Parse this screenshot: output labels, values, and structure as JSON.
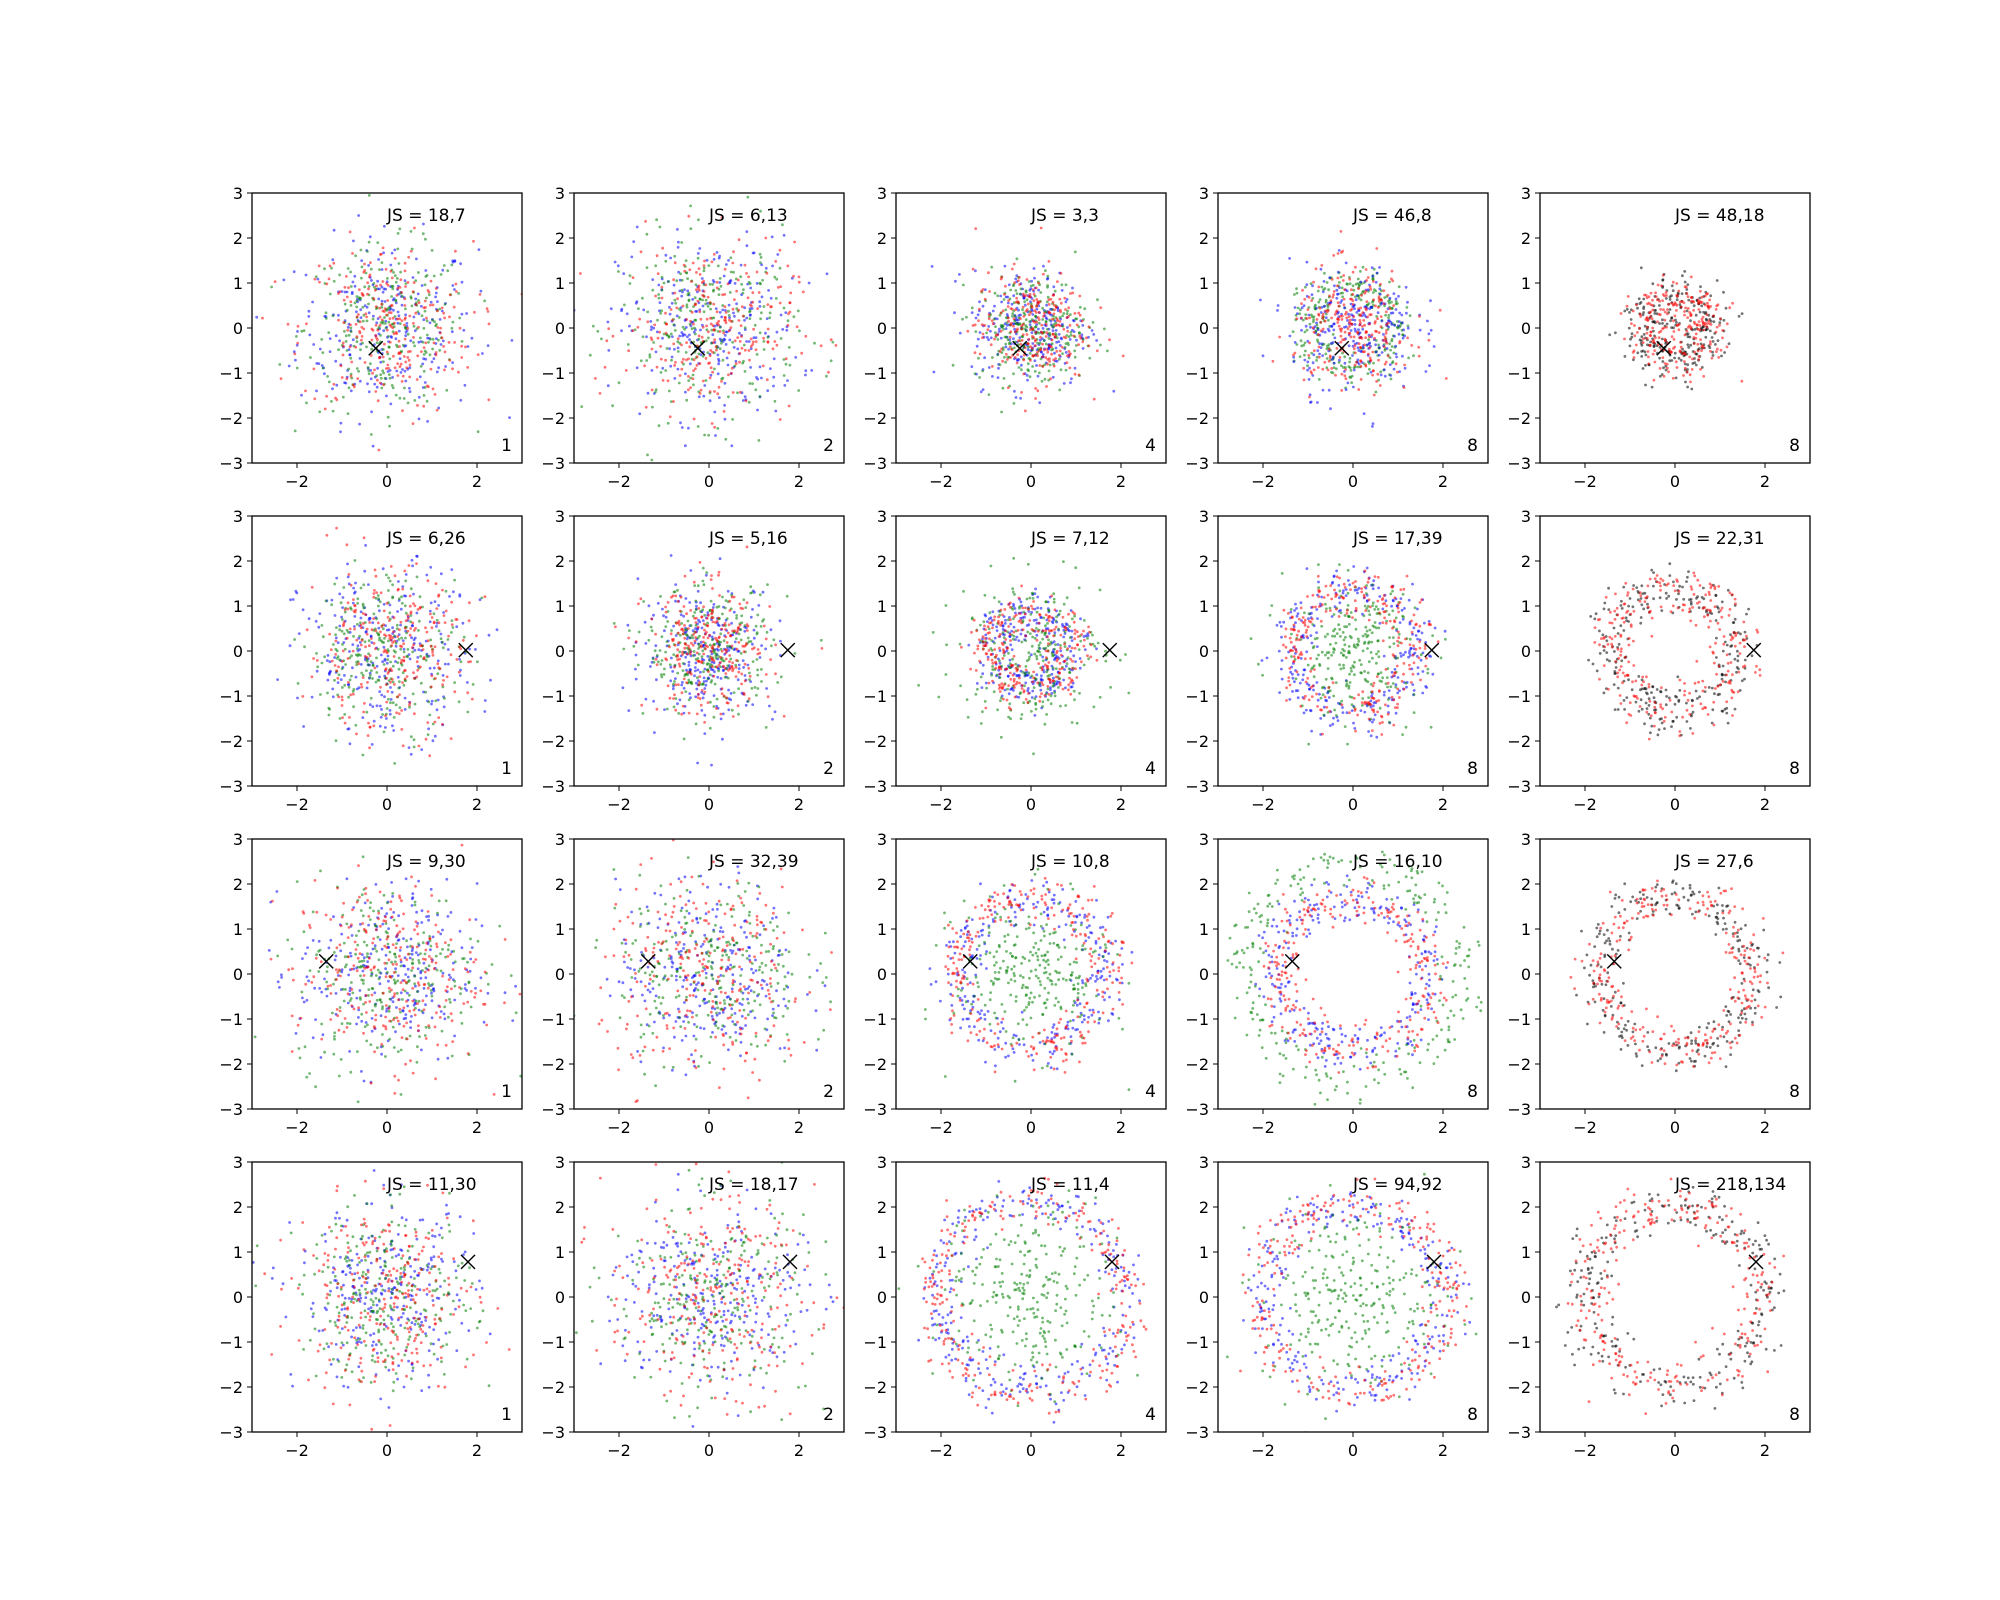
{
  "colors": {
    "blue": "#0000ff",
    "green": "#008000",
    "red": "#ff0000",
    "black": "#000000"
  },
  "chart_data": {
    "type": "scatter",
    "layout": "4x5 grid of scatter subplots",
    "shared_axes": {
      "xlim": [
        -3,
        3
      ],
      "ylim": [
        -3,
        3
      ],
      "xticks": [
        -2,
        0,
        2
      ],
      "yticks": [
        -3,
        -2,
        -1,
        0,
        1,
        2,
        3
      ],
      "grid": false
    },
    "marker_rows": [
      {
        "x": -0.25,
        "y": -0.45
      },
      {
        "x": 1.75,
        "y": 0.02
      },
      {
        "x": -1.35,
        "y": 0.28
      },
      {
        "x": 1.8,
        "y": 0.78
      }
    ],
    "panels": [
      {
        "row": 0,
        "col": 0,
        "js_label": "JS = 18,7",
        "corner_label": "1",
        "shape": "gaussian",
        "series": [
          {
            "color": "blue",
            "r": 1.0
          },
          {
            "color": "green",
            "r": 0.9
          },
          {
            "color": "red",
            "r": 0.95
          }
        ]
      },
      {
        "row": 0,
        "col": 1,
        "js_label": "JS = 6,13",
        "corner_label": "2",
        "shape": "gaussian",
        "series": [
          {
            "color": "blue",
            "r": 1.0
          },
          {
            "color": "green",
            "r": 1.0
          },
          {
            "color": "red",
            "r": 0.95
          }
        ]
      },
      {
        "row": 0,
        "col": 2,
        "js_label": "JS = 3,3",
        "corner_label": "4",
        "shape": "gaussian",
        "series": [
          {
            "color": "blue",
            "r": 0.65
          },
          {
            "color": "green",
            "r": 0.62
          },
          {
            "color": "red",
            "r": 0.62
          }
        ]
      },
      {
        "row": 0,
        "col": 3,
        "js_label": "JS = 46,8",
        "corner_label": "8",
        "shape": "mixed",
        "series": [
          {
            "color": "green",
            "r": 0.95
          },
          {
            "color": "blue",
            "r": 0.7
          },
          {
            "color": "red",
            "r": 0.65
          }
        ]
      },
      {
        "row": 0,
        "col": 4,
        "js_label": "JS = 48,18",
        "corner_label": "8",
        "shape": "arc",
        "series": [
          {
            "color": "black",
            "r": 0.75
          },
          {
            "color": "red",
            "r": 0.7
          }
        ]
      },
      {
        "row": 1,
        "col": 0,
        "js_label": "JS = 6,26",
        "corner_label": "1",
        "shape": "gaussian",
        "series": [
          {
            "color": "blue",
            "r": 0.95
          },
          {
            "color": "green",
            "r": 0.85
          },
          {
            "color": "red",
            "r": 0.9
          }
        ]
      },
      {
        "row": 1,
        "col": 1,
        "js_label": "JS = 5,16",
        "corner_label": "2",
        "shape": "gaussian",
        "series": [
          {
            "color": "blue",
            "r": 0.75
          },
          {
            "color": "green",
            "r": 0.7
          },
          {
            "color": "red",
            "r": 0.7
          }
        ]
      },
      {
        "row": 1,
        "col": 2,
        "js_label": "JS = 7,12",
        "corner_label": "4",
        "shape": "ring",
        "series": [
          {
            "color": "blue",
            "r": 0.85
          },
          {
            "color": "green",
            "r": 0.8
          },
          {
            "color": "red",
            "r": 0.9
          }
        ]
      },
      {
        "row": 1,
        "col": 3,
        "js_label": "JS = 17,39",
        "corner_label": "8",
        "shape": "ring",
        "series": [
          {
            "color": "blue",
            "r": 1.4
          },
          {
            "color": "green",
            "r": 0.75
          },
          {
            "color": "red",
            "r": 1.35
          }
        ]
      },
      {
        "row": 1,
        "col": 4,
        "js_label": "JS = 22,31",
        "corner_label": "8",
        "shape": "arc",
        "series": [
          {
            "color": "black",
            "r": 1.4
          },
          {
            "color": "red",
            "r": 1.35
          }
        ]
      },
      {
        "row": 2,
        "col": 0,
        "js_label": "JS = 9,30",
        "corner_label": "1",
        "shape": "gaussian",
        "series": [
          {
            "color": "blue",
            "r": 1.0
          },
          {
            "color": "green",
            "r": 1.05
          },
          {
            "color": "red",
            "r": 1.05
          }
        ]
      },
      {
        "row": 2,
        "col": 1,
        "js_label": "JS = 32,39",
        "corner_label": "2",
        "shape": "gaussian",
        "series": [
          {
            "color": "blue",
            "r": 1.0
          },
          {
            "color": "green",
            "r": 1.05
          },
          {
            "color": "red",
            "r": 1.2
          }
        ]
      },
      {
        "row": 2,
        "col": 2,
        "js_label": "JS = 10,8",
        "corner_label": "4",
        "shape": "ring",
        "series": [
          {
            "color": "blue",
            "r": 1.6
          },
          {
            "color": "green",
            "r": 0.85
          },
          {
            "color": "red",
            "r": 1.7
          }
        ]
      },
      {
        "row": 2,
        "col": 3,
        "js_label": "JS = 16,10",
        "corner_label": "8",
        "shape": "ring",
        "series": [
          {
            "color": "blue",
            "r": 1.7
          },
          {
            "color": "green",
            "r": 2.4
          },
          {
            "color": "red",
            "r": 1.65
          }
        ]
      },
      {
        "row": 2,
        "col": 4,
        "js_label": "JS = 27,6",
        "corner_label": "8",
        "shape": "ring",
        "series": [
          {
            "color": "black",
            "r": 1.75
          },
          {
            "color": "red",
            "r": 1.7
          }
        ]
      },
      {
        "row": 3,
        "col": 0,
        "js_label": "JS = 11,30",
        "corner_label": "1",
        "shape": "gaussian",
        "series": [
          {
            "color": "blue",
            "r": 1.0
          },
          {
            "color": "green",
            "r": 0.95
          },
          {
            "color": "red",
            "r": 1.0
          }
        ]
      },
      {
        "row": 3,
        "col": 1,
        "js_label": "JS = 18,17",
        "corner_label": "2",
        "shape": "gaussian",
        "series": [
          {
            "color": "blue",
            "r": 1.05
          },
          {
            "color": "green",
            "r": 1.1
          },
          {
            "color": "red",
            "r": 1.15
          }
        ]
      },
      {
        "row": 3,
        "col": 2,
        "js_label": "JS = 11,4",
        "corner_label": "4",
        "shape": "ring",
        "series": [
          {
            "color": "blue",
            "r": 2.1
          },
          {
            "color": "green",
            "r": 1.0
          },
          {
            "color": "red",
            "r": 2.15
          }
        ]
      },
      {
        "row": 3,
        "col": 3,
        "js_label": "JS = 94,92",
        "corner_label": "8",
        "shape": "ring",
        "series": [
          {
            "color": "blue",
            "r": 2.0
          },
          {
            "color": "green",
            "r": 1.0
          },
          {
            "color": "red",
            "r": 2.1
          }
        ]
      },
      {
        "row": 3,
        "col": 4,
        "js_label": "JS = 218,134",
        "corner_label": "8",
        "shape": "arc",
        "series": [
          {
            "color": "black",
            "r": 2.0
          },
          {
            "color": "red",
            "r": 1.95
          }
        ]
      }
    ]
  }
}
